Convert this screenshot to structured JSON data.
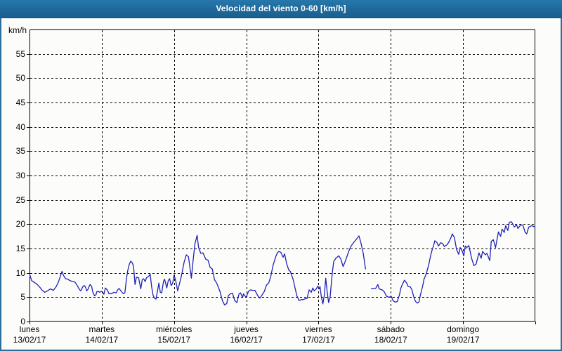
{
  "window": {
    "title": "Velocidad del viento 0-60 [km/h]"
  },
  "colors": {
    "frame_border": "#2c6d9c",
    "title_bar": "#1e6899",
    "title_text": "#ffffff",
    "background": "#fcfdfa",
    "plot_line": "#2020b6",
    "axis": "#000000",
    "grid": "#000000",
    "label_text": "#000000"
  },
  "chart_data": {
    "type": "line",
    "title": "Velocidad del viento 0-60 [km/h]",
    "ylabel": "km/h",
    "xlabel": "",
    "ylim": [
      0,
      60
    ],
    "yticks": [
      0,
      5,
      10,
      15,
      20,
      25,
      30,
      35,
      40,
      45,
      50,
      55
    ],
    "grid": true,
    "legend_position": "none",
    "x_range_days": [
      0,
      7
    ],
    "x_days": [
      {
        "name": "lunes",
        "date": "13/02/17"
      },
      {
        "name": "martes",
        "date": "14/02/17"
      },
      {
        "name": "miércoles",
        "date": "15/02/17"
      },
      {
        "name": "jueves",
        "date": "16/02/17"
      },
      {
        "name": "viernes",
        "date": "17/02/17"
      },
      {
        "name": "sábado",
        "date": "18/02/17"
      },
      {
        "name": "domingo",
        "date": "19/02/17"
      }
    ],
    "series": [
      {
        "name": "velocidad-del-viento-kmh",
        "color": "#2020b6",
        "points": [
          [
            0,
            9.8
          ],
          [
            0.03,
            8.4
          ],
          [
            0.06,
            8.1
          ],
          [
            0.1,
            7.7
          ],
          [
            0.14,
            7.1
          ],
          [
            0.17,
            6.5
          ],
          [
            0.21,
            6
          ],
          [
            0.25,
            6.3
          ],
          [
            0.29,
            6.7
          ],
          [
            0.33,
            6.4
          ],
          [
            0.37,
            7.2
          ],
          [
            0.4,
            8.1
          ],
          [
            0.43,
            9.4
          ],
          [
            0.45,
            10.3
          ],
          [
            0.47,
            9.5
          ],
          [
            0.5,
            8.8
          ],
          [
            0.53,
            8.7
          ],
          [
            0.56,
            8.4
          ],
          [
            0.6,
            8.2
          ],
          [
            0.63,
            8.1
          ],
          [
            0.66,
            7.4
          ],
          [
            0.69,
            6.6
          ],
          [
            0.71,
            6.3
          ],
          [
            0.74,
            7.2
          ],
          [
            0.76,
            7.4
          ],
          [
            0.78,
            6.9
          ],
          [
            0.79,
            6.3
          ],
          [
            0.81,
            6.6
          ],
          [
            0.83,
            7.4
          ],
          [
            0.84,
            7.6
          ],
          [
            0.86,
            7.2
          ],
          [
            0.875,
            6.1
          ],
          [
            0.9,
            5.3
          ],
          [
            0.92,
            5.5
          ],
          [
            0.93,
            6.1
          ],
          [
            0.95,
            6.2
          ],
          [
            0.97,
            6
          ],
          [
            0.99,
            6.2
          ],
          [
            1.01,
            6.1
          ],
          [
            1.03,
            5.6
          ],
          [
            1.05,
            6.9
          ],
          [
            1.08,
            6.4
          ],
          [
            1.1,
            5.7
          ],
          [
            1.13,
            5.7
          ],
          [
            1.17,
            6
          ],
          [
            1.2,
            5.9
          ],
          [
            1.22,
            6.5
          ],
          [
            1.24,
            6.8
          ],
          [
            1.27,
            6.2
          ],
          [
            1.3,
            5.7
          ],
          [
            1.32,
            5.9
          ],
          [
            1.34,
            8.6
          ],
          [
            1.36,
            10.5
          ],
          [
            1.38,
            11.7
          ],
          [
            1.4,
            12.4
          ],
          [
            1.42,
            12.1
          ],
          [
            1.44,
            11.4
          ],
          [
            1.46,
            7.6
          ],
          [
            1.48,
            9.1
          ],
          [
            1.51,
            9
          ],
          [
            1.54,
            6.7
          ],
          [
            1.56,
            8.6
          ],
          [
            1.58,
            8.8
          ],
          [
            1.6,
            8.2
          ],
          [
            1.62,
            9
          ],
          [
            1.65,
            9.3
          ],
          [
            1.67,
            9.7
          ],
          [
            1.69,
            7.2
          ],
          [
            1.71,
            5.4
          ],
          [
            1.73,
            4.8
          ],
          [
            1.75,
            4.6
          ],
          [
            1.77,
            6.2
          ],
          [
            1.79,
            7.9
          ],
          [
            1.81,
            6
          ],
          [
            1.83,
            5.9
          ],
          [
            1.855,
            8.3
          ],
          [
            1.87,
            8.7
          ],
          [
            1.9,
            6.9
          ],
          [
            1.92,
            8.4
          ],
          [
            1.94,
            8.8
          ],
          [
            1.96,
            7.4
          ],
          [
            1.98,
            7.8
          ],
          [
            2,
            9.5
          ],
          [
            2.02,
            8.6
          ],
          [
            2.05,
            6.3
          ],
          [
            2.08,
            8
          ],
          [
            2.1,
            9.2
          ],
          [
            2.14,
            12.2
          ],
          [
            2.17,
            13.7
          ],
          [
            2.2,
            13.3
          ],
          [
            2.24,
            8.9
          ],
          [
            2.26,
            12
          ],
          [
            2.29,
            16
          ],
          [
            2.32,
            17.7
          ],
          [
            2.34,
            15.2
          ],
          [
            2.37,
            14
          ],
          [
            2.4,
            14.1
          ],
          [
            2.44,
            12.8
          ],
          [
            2.47,
            12.6
          ],
          [
            2.5,
            11.1
          ],
          [
            2.53,
            10.8
          ],
          [
            2.56,
            8.6
          ],
          [
            2.59,
            7.9
          ],
          [
            2.61,
            7.2
          ],
          [
            2.64,
            6
          ],
          [
            2.67,
            4.3
          ],
          [
            2.7,
            3.4
          ],
          [
            2.73,
            3.7
          ],
          [
            2.75,
            5.3
          ],
          [
            2.78,
            5.7
          ],
          [
            2.81,
            5.8
          ],
          [
            2.84,
            4.3
          ],
          [
            2.87,
            3.9
          ],
          [
            2.9,
            5.7
          ],
          [
            2.92,
            5.9
          ],
          [
            2.95,
            4.9
          ],
          [
            2.96,
            5.7
          ],
          [
            2.98,
            5.3
          ],
          [
            3,
            5
          ],
          [
            3.03,
            6.2
          ],
          [
            3.06,
            6.5
          ],
          [
            3.09,
            6.4
          ],
          [
            3.12,
            6.4
          ],
          [
            3.16,
            5.3
          ],
          [
            3.19,
            4.8
          ],
          [
            3.22,
            5.5
          ],
          [
            3.25,
            6.2
          ],
          [
            3.28,
            7.5
          ],
          [
            3.31,
            7.9
          ],
          [
            3.34,
            9.3
          ],
          [
            3.37,
            11.5
          ],
          [
            3.41,
            13.4
          ],
          [
            3.43,
            14.1
          ],
          [
            3.45,
            14.4
          ],
          [
            3.48,
            14.2
          ],
          [
            3.51,
            13.2
          ],
          [
            3.53,
            13.9
          ],
          [
            3.56,
            11.8
          ],
          [
            3.59,
            10.5
          ],
          [
            3.61,
            10.3
          ],
          [
            3.65,
            8.6
          ],
          [
            3.67,
            7.2
          ],
          [
            3.7,
            5.3
          ],
          [
            3.73,
            4.3
          ],
          [
            3.76,
            4.5
          ],
          [
            3.79,
            4.5
          ],
          [
            3.82,
            4.7
          ],
          [
            3.84,
            4.7
          ],
          [
            3.87,
            6.5
          ],
          [
            3.9,
            6
          ],
          [
            3.92,
            6.9
          ],
          [
            3.94,
            6.3
          ],
          [
            3.97,
            6.7
          ],
          [
            3.99,
            7.3
          ],
          [
            4.01,
            6.7
          ],
          [
            4.02,
            7.2
          ],
          [
            4.04,
            5
          ],
          [
            4.06,
            3.6
          ],
          [
            4.08,
            5.5
          ],
          [
            4.1,
            8.9
          ],
          [
            4.12,
            6
          ],
          [
            4.14,
            3.9
          ],
          [
            4.16,
            5
          ],
          [
            4.19,
            10
          ],
          [
            4.21,
            12.3
          ],
          [
            4.24,
            13
          ],
          [
            4.28,
            13.5
          ],
          [
            4.31,
            12.8
          ],
          [
            4.34,
            11.3
          ],
          [
            4.36,
            12
          ],
          [
            4.39,
            13.2
          ],
          [
            4.42,
            14.5
          ],
          [
            4.45,
            15.5
          ],
          [
            4.49,
            16.3
          ],
          [
            4.53,
            17
          ],
          [
            4.56,
            17.6
          ],
          [
            4.59,
            16
          ],
          [
            4.62,
            13.9
          ],
          [
            4.65,
            10.8
          ],
          null,
          [
            4.73,
            6.7
          ],
          [
            4.76,
            6.8
          ],
          [
            4.79,
            6.8
          ],
          [
            4.82,
            7.6
          ],
          [
            4.84,
            6.7
          ],
          [
            4.88,
            6.5
          ],
          [
            4.91,
            6.1
          ],
          [
            4.94,
            5.2
          ],
          [
            4.97,
            5
          ],
          [
            5.01,
            5.1
          ],
          [
            5.03,
            4.3
          ],
          [
            5.06,
            4
          ],
          [
            5.09,
            4.1
          ],
          [
            5.12,
            5.5
          ],
          [
            5.14,
            6.9
          ],
          [
            5.16,
            7.6
          ],
          [
            5.19,
            8.5
          ],
          [
            5.22,
            7.9
          ],
          [
            5.24,
            7.2
          ],
          [
            5.27,
            7.1
          ],
          [
            5.29,
            6.6
          ],
          [
            5.31,
            5.5
          ],
          [
            5.33,
            4.5
          ],
          [
            5.35,
            4
          ],
          [
            5.37,
            3.8
          ],
          [
            5.39,
            4
          ],
          [
            5.41,
            5.5
          ],
          [
            5.44,
            7.2
          ],
          [
            5.46,
            8.7
          ],
          [
            5.49,
            9.8
          ],
          [
            5.51,
            10.8
          ],
          [
            5.53,
            12
          ],
          [
            5.55,
            13.5
          ],
          [
            5.57,
            14.6
          ],
          [
            5.59,
            15.5
          ],
          [
            5.61,
            16.6
          ],
          [
            5.64,
            16.2
          ],
          [
            5.66,
            15.5
          ],
          [
            5.69,
            16.2
          ],
          [
            5.72,
            16
          ],
          [
            5.74,
            15.4
          ],
          [
            5.78,
            15.8
          ],
          [
            5.81,
            16.5
          ],
          [
            5.84,
            17.5
          ],
          [
            5.85,
            18
          ],
          [
            5.88,
            17.3
          ],
          [
            5.91,
            14.8
          ],
          [
            5.94,
            13.8
          ],
          [
            5.96,
            15.2
          ],
          [
            5.99,
            14.4
          ],
          [
            6.01,
            13.5
          ],
          [
            6.03,
            15.5
          ],
          [
            6.05,
            15.2
          ],
          [
            6.08,
            15.6
          ],
          [
            6.12,
            12.9
          ],
          [
            6.15,
            11.5
          ],
          [
            6.18,
            11.8
          ],
          [
            6.22,
            14.1
          ],
          [
            6.25,
            13
          ],
          [
            6.27,
            14.4
          ],
          [
            6.31,
            13.7
          ],
          [
            6.33,
            14
          ],
          [
            6.37,
            12.5
          ],
          [
            6.39,
            16.5
          ],
          [
            6.42,
            16.8
          ],
          [
            6.45,
            15.2
          ],
          [
            6.49,
            18.4
          ],
          [
            6.52,
            17.5
          ],
          [
            6.54,
            19
          ],
          [
            6.57,
            18.3
          ],
          [
            6.59,
            19.7
          ],
          [
            6.62,
            18.7
          ],
          [
            6.64,
            20.4
          ],
          [
            6.67,
            20.5
          ],
          [
            6.71,
            19.4
          ],
          [
            6.74,
            19.9
          ],
          [
            6.76,
            19.1
          ],
          [
            6.8,
            19.9
          ],
          [
            6.83,
            19.7
          ],
          [
            6.86,
            18.3
          ],
          [
            6.88,
            18
          ],
          [
            6.91,
            19.4
          ],
          [
            6.95,
            19.7
          ],
          [
            6.98,
            19.5
          ],
          [
            7,
            19.6
          ]
        ]
      }
    ]
  }
}
